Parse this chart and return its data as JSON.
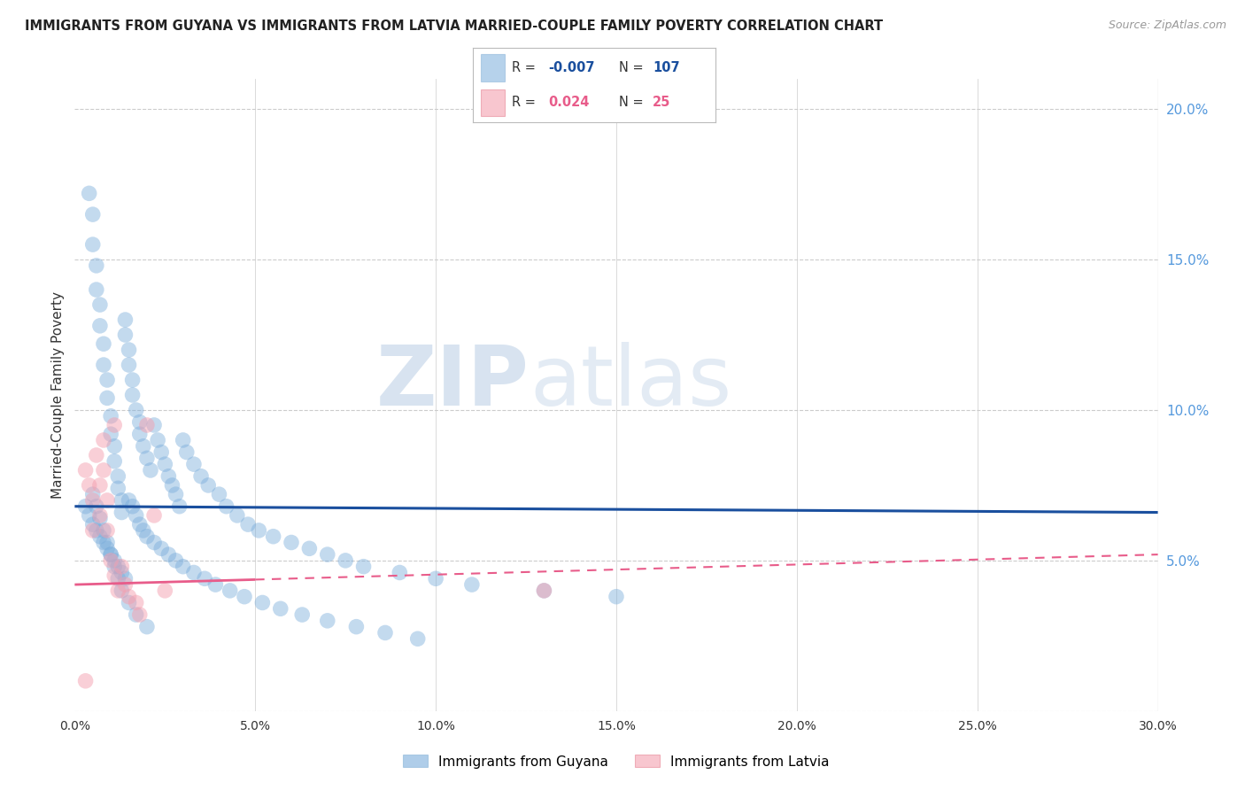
{
  "title": "IMMIGRANTS FROM GUYANA VS IMMIGRANTS FROM LATVIA MARRIED-COUPLE FAMILY POVERTY CORRELATION CHART",
  "source": "Source: ZipAtlas.com",
  "ylabel": "Married-Couple Family Poverty",
  "xlim": [
    0.0,
    0.3
  ],
  "ylim": [
    0.0,
    0.21
  ],
  "xticks": [
    0.0,
    0.05,
    0.1,
    0.15,
    0.2,
    0.25,
    0.3
  ],
  "xticklabels": [
    "0.0%",
    "5.0%",
    "10.0%",
    "15.0%",
    "20.0%",
    "25.0%",
    "30.0%"
  ],
  "yticks_right": [
    0.05,
    0.1,
    0.15,
    0.2
  ],
  "yticklabels_right": [
    "5.0%",
    "10.0%",
    "15.0%",
    "20.0%"
  ],
  "grid_color": "#cccccc",
  "background_color": "#ffffff",
  "legend_R_guyana": "-0.007",
  "legend_N_guyana": "107",
  "legend_R_latvia": "0.024",
  "legend_N_latvia": "25",
  "guyana_color": "#7aaddb",
  "latvia_color": "#f4a0b0",
  "guyana_line_color": "#1a4f9e",
  "latvia_line_color": "#e85c8a",
  "watermark_ZIP": "ZIP",
  "watermark_atlas": "atlas",
  "guyana_x": [
    0.004,
    0.005,
    0.005,
    0.006,
    0.006,
    0.007,
    0.007,
    0.008,
    0.008,
    0.009,
    0.009,
    0.01,
    0.01,
    0.011,
    0.011,
    0.012,
    0.012,
    0.013,
    0.013,
    0.014,
    0.014,
    0.015,
    0.015,
    0.016,
    0.016,
    0.017,
    0.018,
    0.018,
    0.019,
    0.02,
    0.021,
    0.022,
    0.023,
    0.024,
    0.025,
    0.026,
    0.027,
    0.028,
    0.029,
    0.03,
    0.031,
    0.033,
    0.035,
    0.037,
    0.04,
    0.042,
    0.045,
    0.048,
    0.051,
    0.055,
    0.06,
    0.065,
    0.07,
    0.075,
    0.08,
    0.09,
    0.1,
    0.11,
    0.13,
    0.15,
    0.003,
    0.004,
    0.005,
    0.006,
    0.007,
    0.008,
    0.009,
    0.01,
    0.011,
    0.012,
    0.013,
    0.014,
    0.015,
    0.016,
    0.017,
    0.018,
    0.019,
    0.02,
    0.022,
    0.024,
    0.026,
    0.028,
    0.03,
    0.033,
    0.036,
    0.039,
    0.043,
    0.047,
    0.052,
    0.057,
    0.063,
    0.07,
    0.078,
    0.086,
    0.095,
    0.005,
    0.006,
    0.007,
    0.008,
    0.009,
    0.01,
    0.011,
    0.012,
    0.013,
    0.015,
    0.017,
    0.02
  ],
  "guyana_y": [
    0.172,
    0.165,
    0.155,
    0.148,
    0.14,
    0.135,
    0.128,
    0.122,
    0.115,
    0.11,
    0.104,
    0.098,
    0.092,
    0.088,
    0.083,
    0.078,
    0.074,
    0.07,
    0.066,
    0.13,
    0.125,
    0.12,
    0.115,
    0.11,
    0.105,
    0.1,
    0.096,
    0.092,
    0.088,
    0.084,
    0.08,
    0.095,
    0.09,
    0.086,
    0.082,
    0.078,
    0.075,
    0.072,
    0.068,
    0.09,
    0.086,
    0.082,
    0.078,
    0.075,
    0.072,
    0.068,
    0.065,
    0.062,
    0.06,
    0.058,
    0.056,
    0.054,
    0.052,
    0.05,
    0.048,
    0.046,
    0.044,
    0.042,
    0.04,
    0.038,
    0.068,
    0.065,
    0.062,
    0.06,
    0.058,
    0.056,
    0.054,
    0.052,
    0.05,
    0.048,
    0.046,
    0.044,
    0.07,
    0.068,
    0.065,
    0.062,
    0.06,
    0.058,
    0.056,
    0.054,
    0.052,
    0.05,
    0.048,
    0.046,
    0.044,
    0.042,
    0.04,
    0.038,
    0.036,
    0.034,
    0.032,
    0.03,
    0.028,
    0.026,
    0.024,
    0.072,
    0.068,
    0.064,
    0.06,
    0.056,
    0.052,
    0.048,
    0.044,
    0.04,
    0.036,
    0.032,
    0.028
  ],
  "latvia_x": [
    0.003,
    0.004,
    0.005,
    0.005,
    0.006,
    0.007,
    0.007,
    0.008,
    0.008,
    0.009,
    0.009,
    0.01,
    0.011,
    0.011,
    0.012,
    0.013,
    0.014,
    0.015,
    0.017,
    0.018,
    0.02,
    0.022,
    0.025,
    0.13,
    0.003
  ],
  "latvia_y": [
    0.08,
    0.075,
    0.07,
    0.06,
    0.085,
    0.075,
    0.065,
    0.09,
    0.08,
    0.07,
    0.06,
    0.05,
    0.045,
    0.095,
    0.04,
    0.048,
    0.042,
    0.038,
    0.036,
    0.032,
    0.095,
    0.065,
    0.04,
    0.04,
    0.01
  ],
  "guyana_line_y0": 0.068,
  "guyana_line_y1": 0.066,
  "latvia_line_y0": 0.042,
  "latvia_line_y1": 0.052
}
